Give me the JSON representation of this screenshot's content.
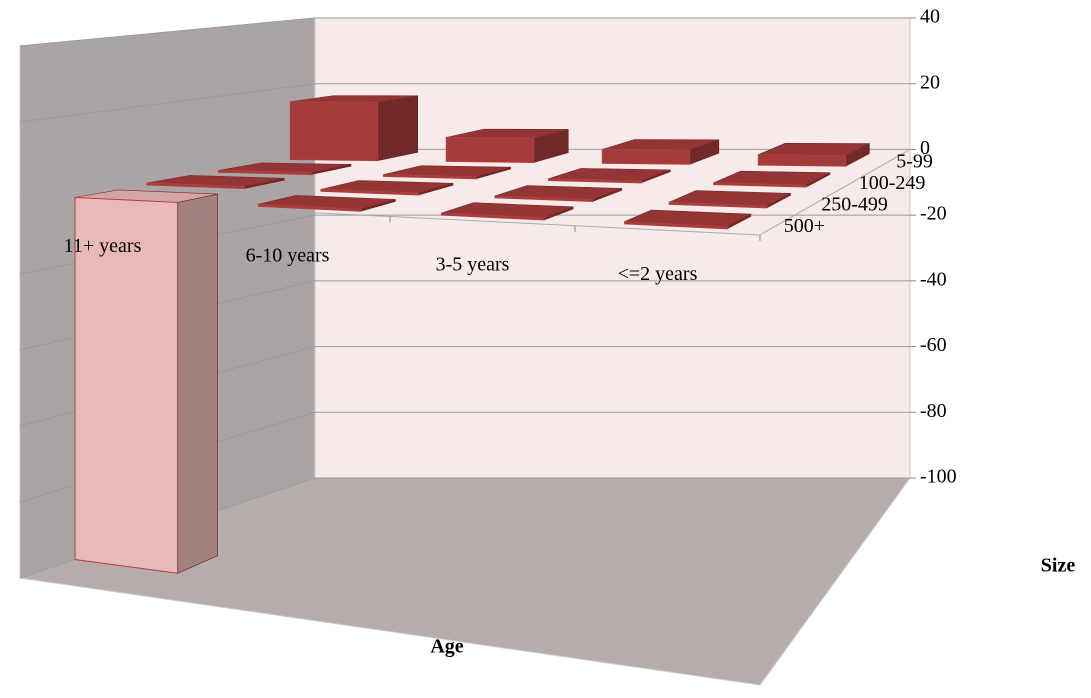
{
  "chart_data": {
    "type": "bar3d",
    "categories": [
      "11+ years",
      "6-10 years",
      "3-5 years",
      "<=2 years"
    ],
    "series": [
      {
        "name": "5-99",
        "color": "#a33b3b",
        "values": [
          17,
          7,
          4,
          3
        ]
      },
      {
        "name": "100-249",
        "color": "#a33b3b",
        "values": [
          0.5,
          0.5,
          0.5,
          0.5
        ]
      },
      {
        "name": "250-499",
        "color": "#a33b3b",
        "values": [
          0.5,
          0.5,
          0.5,
          0.5
        ]
      },
      {
        "name": "500+",
        "color": "#a33b3b",
        "values": [
          -95,
          0.5,
          0.5,
          0.5
        ]
      }
    ],
    "negative_color": "#e9b8b8",
    "ylim": [
      -100,
      40
    ],
    "yticks": [
      -100,
      -80,
      -60,
      -40,
      -20,
      0,
      20,
      40
    ],
    "xlabel": "Age",
    "zlabel": "Size",
    "grid": true
  }
}
